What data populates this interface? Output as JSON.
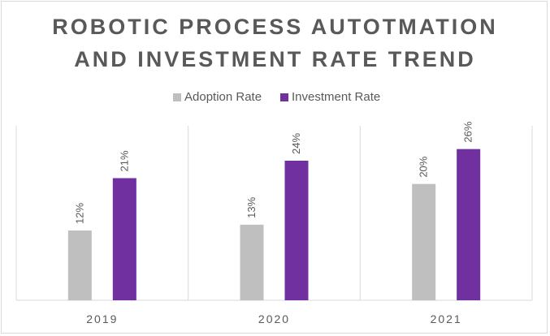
{
  "chart_data": {
    "type": "bar",
    "title_lines": [
      "ROBOTIC PROCESS AUTOTMATION",
      "AND INVESTMENT RATE TREND"
    ],
    "categories": [
      "2019",
      "2020",
      "2021"
    ],
    "series": [
      {
        "name": "Adoption Rate",
        "values": [
          12,
          13,
          20
        ],
        "labels": [
          "12%",
          "13%",
          "20%"
        ],
        "color": "#bfbfbf"
      },
      {
        "name": "Investment Rate",
        "values": [
          21,
          24,
          26
        ],
        "labels": [
          "21%",
          "24%",
          "26%"
        ],
        "color": "#7030a0"
      }
    ],
    "ylim": [
      0,
      30
    ],
    "legend_position": "top",
    "grid": "vertical separators",
    "xlabel": "",
    "ylabel": ""
  }
}
